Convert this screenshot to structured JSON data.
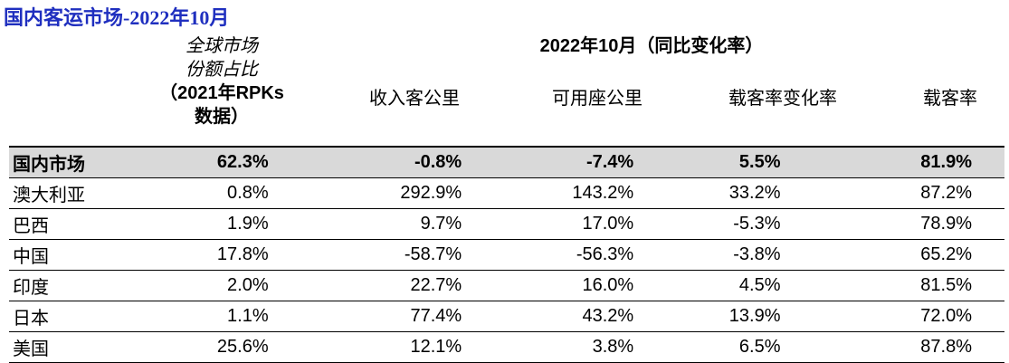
{
  "title": "国内客运市场-2022年10月",
  "header": {
    "share_line1": "全球市场",
    "share_line2": "份额占比",
    "share_line3": "（2021年RPKs",
    "share_line4": "数据）",
    "period": "2022年10月（同比变化率）",
    "col_rpk": "收入客公里",
    "col_ask": "可用座公里",
    "col_plf_change": "载客率变化率",
    "col_plf": "载客率"
  },
  "rows": [
    {
      "name": "国内市场",
      "share": "62.3%",
      "rpk": "-0.8%",
      "ask": "-7.4%",
      "plf_change": "5.5%",
      "plf": "81.9%"
    },
    {
      "name": "澳大利亚",
      "share": "0.8%",
      "rpk": "292.9%",
      "ask": "143.2%",
      "plf_change": "33.2%",
      "plf": "87.2%"
    },
    {
      "name": "巴西",
      "share": "1.9%",
      "rpk": "9.7%",
      "ask": "17.0%",
      "plf_change": "-5.3%",
      "plf": "78.9%"
    },
    {
      "name": "中国",
      "share": "17.8%",
      "rpk": "-58.7%",
      "ask": "-56.3%",
      "plf_change": "-3.8%",
      "plf": "65.2%"
    },
    {
      "name": "印度",
      "share": "2.0%",
      "rpk": "22.7%",
      "ask": "16.0%",
      "plf_change": "4.5%",
      "plf": "81.5%"
    },
    {
      "name": "日本",
      "share": "1.1%",
      "rpk": "77.4%",
      "ask": "43.2%",
      "plf_change": "13.9%",
      "plf": "72.0%"
    },
    {
      "name": "美国",
      "share": "25.6%",
      "rpk": "12.1%",
      "ask": "3.8%",
      "plf_change": "6.5%",
      "plf": "87.8%"
    }
  ]
}
